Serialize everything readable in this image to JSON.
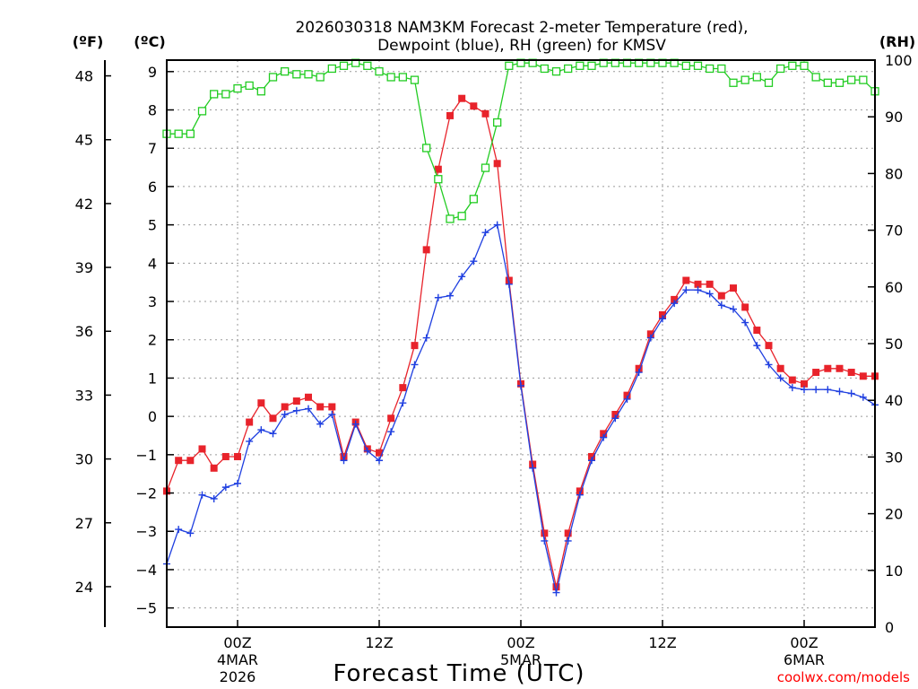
{
  "chart_data": {
    "type": "line",
    "title_line1": "2026030318 NAM3KM Forecast 2-meter Temperature (red),",
    "title_line2": "Dewpoint (blue), RH (green) for KMSV",
    "xlabel": "Forecast Time (UTC)",
    "credit": "coolwx.com/models",
    "units": {
      "fahrenheit": "(ºF)",
      "celsius": "(ºC)",
      "rh": "(RH)"
    },
    "fahrenheit_ticks": [
      "24",
      "27",
      "30",
      "33",
      "36",
      "39",
      "42",
      "45",
      "48"
    ],
    "celsius_ticks": [
      "−5",
      "−4",
      "−3",
      "−2",
      "−1",
      "0",
      "1",
      "2",
      "3",
      "4",
      "5",
      "6",
      "7",
      "8",
      "9"
    ],
    "rh_ticks": [
      "0",
      "10",
      "20",
      "30",
      "40",
      "50",
      "60",
      "70",
      "80",
      "90",
      "100"
    ],
    "ylim_celsius": [
      -5.5,
      9.3
    ],
    "ylim_rh": [
      0,
      100
    ],
    "xlim_hours": [
      0,
      60
    ],
    "x_ticks": [
      {
        "hour": 6,
        "label": "00Z",
        "date": "4MAR",
        "year": "2026"
      },
      {
        "hour": 18,
        "label": "12Z",
        "date": "",
        "year": ""
      },
      {
        "hour": 30,
        "label": "00Z",
        "date": "5MAR",
        "year": ""
      },
      {
        "hour": 42,
        "label": "12Z",
        "date": "",
        "year": ""
      },
      {
        "hour": 54,
        "label": "00Z",
        "date": "6MAR",
        "year": ""
      }
    ],
    "x_hours": [
      0,
      1,
      2,
      3,
      4,
      5,
      6,
      7,
      8,
      9,
      10,
      11,
      12,
      13,
      14,
      15,
      16,
      17,
      18,
      19,
      20,
      21,
      22,
      23,
      24,
      25,
      26,
      27,
      28,
      29,
      30,
      31,
      32,
      33,
      34,
      35,
      36,
      37,
      38,
      39,
      40,
      41,
      42,
      43,
      44,
      45,
      46,
      47,
      48,
      49,
      50,
      51,
      52,
      53,
      54,
      55,
      56,
      57,
      58,
      59,
      60
    ],
    "series": [
      {
        "name": "Temperature",
        "color": "#e8232b",
        "marker": "filled-square",
        "axis": "celsius",
        "values": [
          -1.95,
          -1.15,
          -1.15,
          -0.85,
          -1.35,
          -1.05,
          -1.05,
          -0.15,
          0.35,
          -0.05,
          0.25,
          0.4,
          0.5,
          0.25,
          0.25,
          -1.05,
          -0.15,
          -0.85,
          -0.95,
          -0.05,
          0.75,
          1.85,
          4.35,
          6.45,
          7.85,
          8.3,
          8.1,
          7.9,
          6.6,
          3.55,
          0.85,
          -1.25,
          -3.05,
          -4.45,
          -3.05,
          -1.95,
          -1.05,
          -0.45,
          0.05,
          0.55,
          1.25,
          2.15,
          2.65,
          3.05,
          3.55,
          3.45,
          3.45,
          3.15,
          3.35,
          2.85,
          2.25,
          1.85,
          1.25,
          0.95,
          0.85,
          1.15,
          1.25,
          1.25,
          1.15,
          1.05,
          1.05
        ]
      },
      {
        "name": "Dewpoint",
        "color": "#1f3fe0",
        "marker": "plus",
        "axis": "celsius",
        "values": [
          -3.85,
          -2.95,
          -3.05,
          -2.05,
          -2.15,
          -1.85,
          -1.75,
          -0.65,
          -0.35,
          -0.45,
          0.05,
          0.15,
          0.2,
          -0.2,
          0.05,
          -1.15,
          -0.2,
          -0.9,
          -1.15,
          -0.4,
          0.35,
          1.35,
          2.05,
          3.1,
          3.15,
          3.65,
          4.05,
          4.8,
          5.0,
          3.45,
          0.8,
          -1.35,
          -3.25,
          -4.6,
          -3.25,
          -2.05,
          -1.15,
          -0.55,
          -0.05,
          0.45,
          1.15,
          2.05,
          2.55,
          2.95,
          3.3,
          3.3,
          3.2,
          2.9,
          2.8,
          2.45,
          1.85,
          1.35,
          1.0,
          0.75,
          0.7,
          0.7,
          0.7,
          0.65,
          0.6,
          0.5,
          0.3
        ]
      },
      {
        "name": "RH",
        "color": "#22cc22",
        "marker": "open-square",
        "axis": "rh",
        "values": [
          87,
          87,
          87,
          91,
          94,
          94,
          95,
          95.5,
          94.5,
          97,
          98,
          97.5,
          97.5,
          97,
          98.5,
          99,
          99.5,
          99,
          98,
          97,
          97,
          96.5,
          84.5,
          79,
          72,
          72.5,
          75.5,
          81,
          89,
          99,
          99.5,
          99.5,
          98.5,
          98,
          98.5,
          99,
          99,
          99.5,
          99.5,
          99.5,
          99.5,
          99.5,
          99.5,
          99.5,
          99,
          99,
          98.5,
          98.5,
          96,
          96.5,
          97,
          96,
          98.5,
          99,
          99,
          97,
          96,
          96,
          96.5,
          96.5,
          94.5
        ]
      }
    ]
  }
}
